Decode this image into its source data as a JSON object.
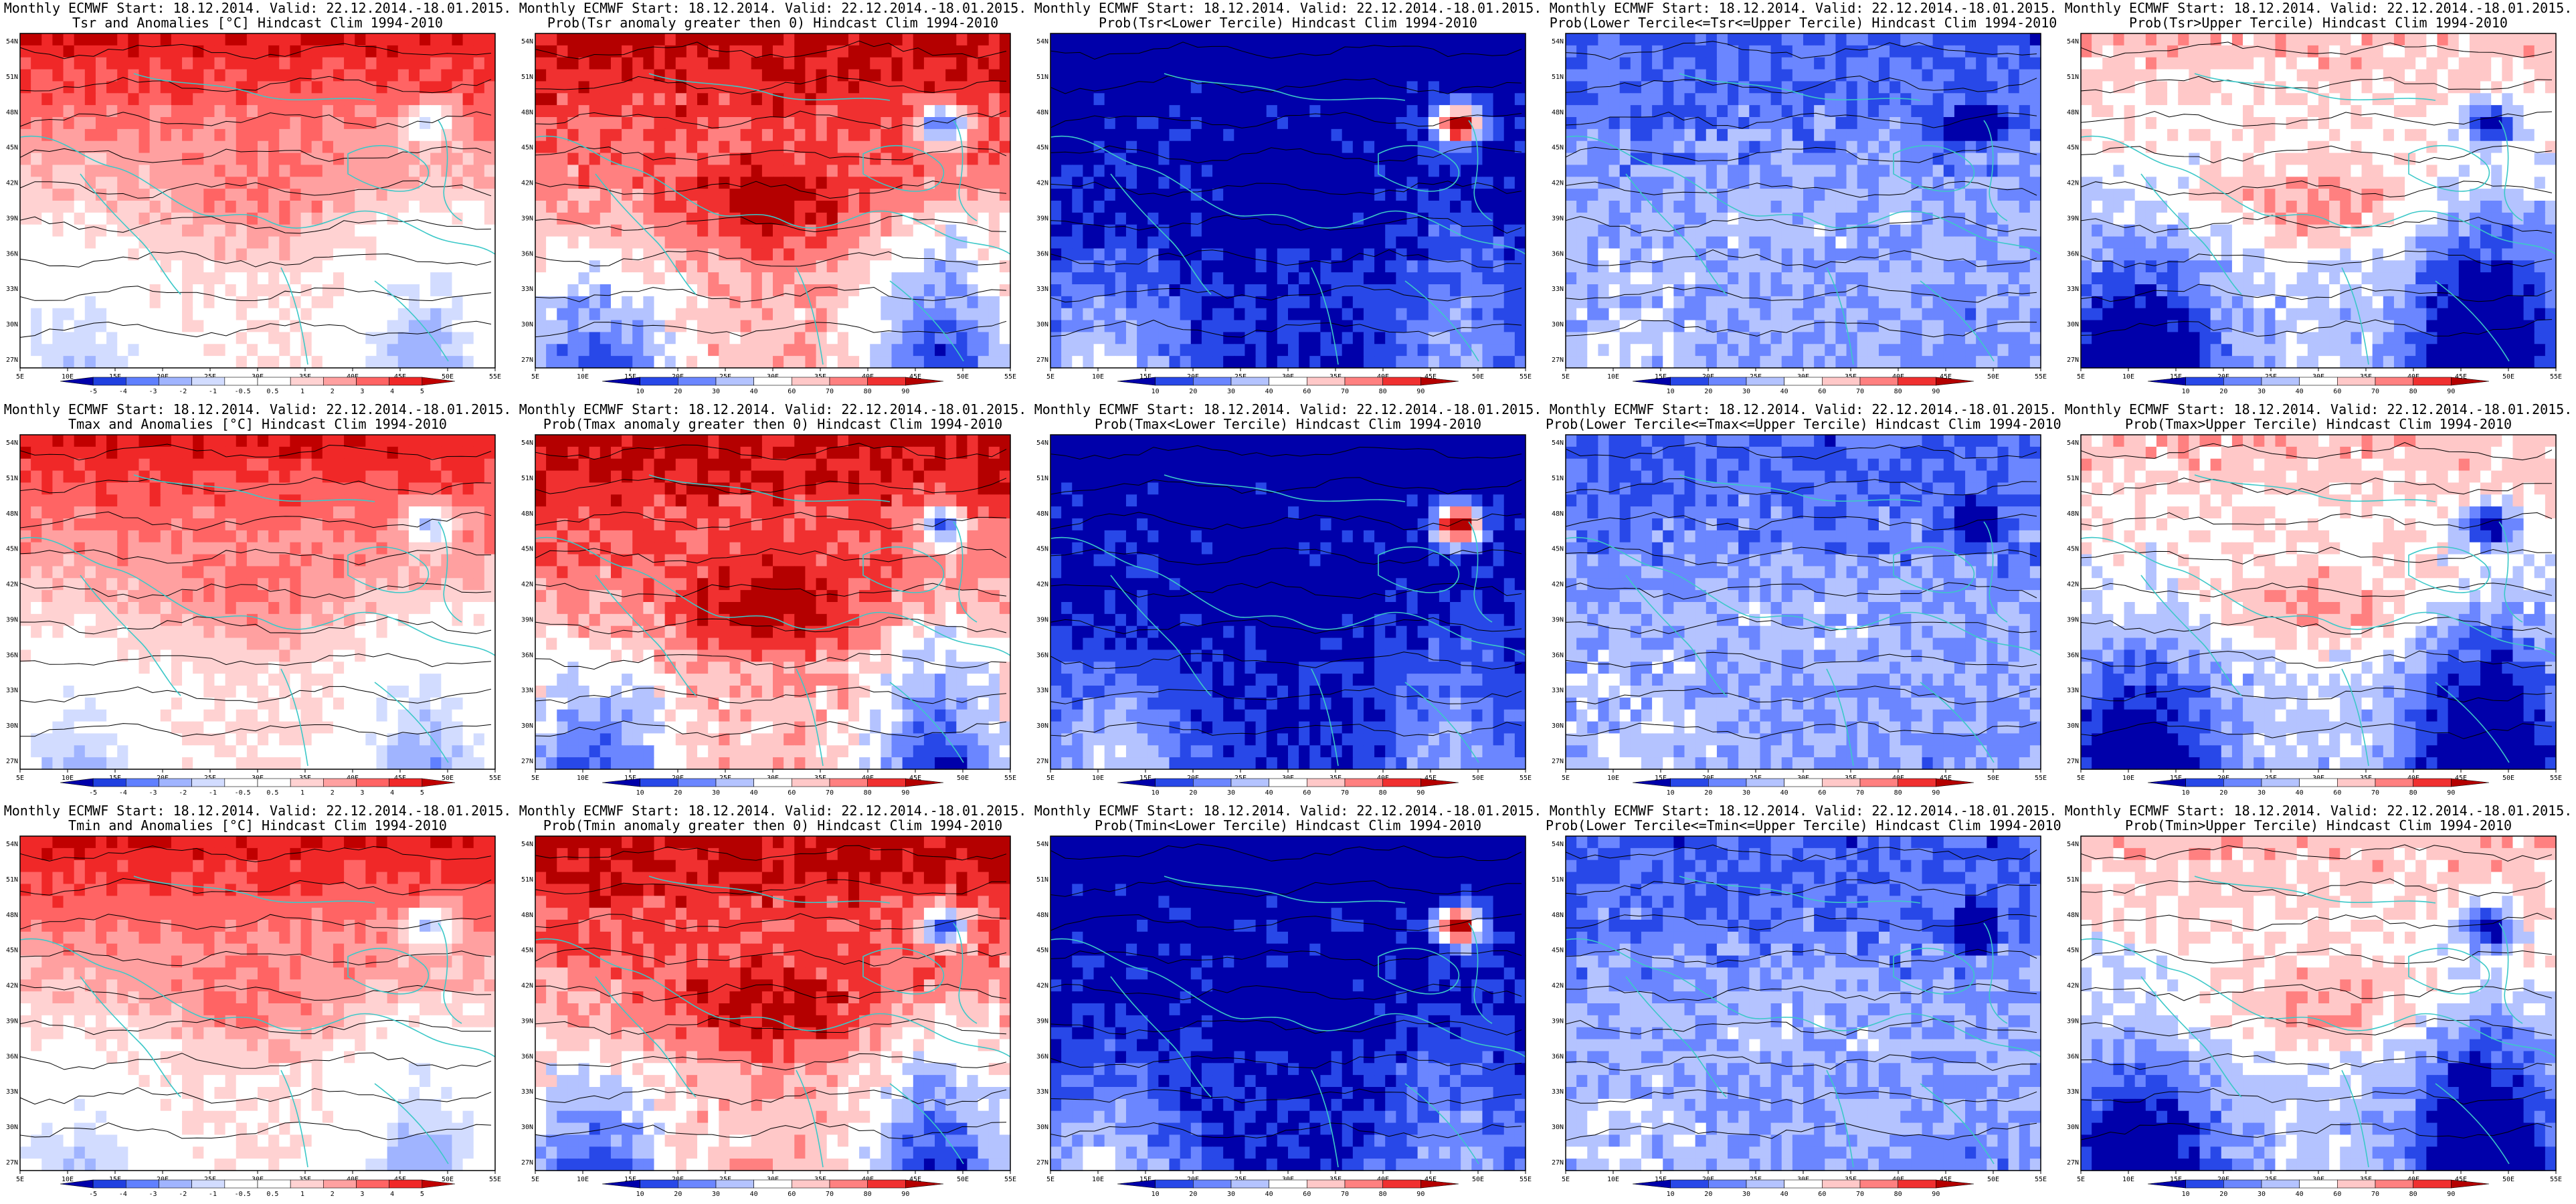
{
  "header_line": "Monthly ECMWF Start: 18.12.2014. Valid: 22.12.2014.-18.01.2015.",
  "lon_labels": [
    "5E",
    "10E",
    "15E",
    "20E",
    "25E",
    "30E",
    "35E",
    "40E",
    "45E",
    "50E",
    "55E"
  ],
  "lat_labels": [
    "54N",
    "51N",
    "48N",
    "45N",
    "42N",
    "39N",
    "36N",
    "33N",
    "30N",
    "27N"
  ],
  "anomaly_scale": [
    "-5",
    "-4",
    "-3",
    "-2",
    "-1",
    "-0.5",
    "0.5",
    "1",
    "2",
    "3",
    "4",
    "5"
  ],
  "prob_scale": [
    "10",
    "20",
    "30",
    "40",
    "60",
    "70",
    "80",
    "90"
  ],
  "colors": {
    "deep_blue": "#0000c8",
    "blue": "#3c5af0",
    "light_blue": "#b4c3ff",
    "pale_red": "#ffc8c8",
    "red": "#ff3c3c",
    "deep_red": "#c80000",
    "coast": "#3cc8c8",
    "contour": "#000000"
  },
  "panels": [
    {
      "subtitle": "Tsr and Anomalies [°C] Hindcast Clim 1994-2010",
      "scale": "anomaly"
    },
    {
      "subtitle": "Prob(Tsr anomaly greater then 0) Hindcast Clim 1994-2010",
      "scale": "prob"
    },
    {
      "subtitle": "Prob(Tsr<Lower Tercile) Hindcast Clim 1994-2010",
      "scale": "prob"
    },
    {
      "subtitle": "Prob(Lower Tercile<=Tsr<=Upper Tercile) Hindcast Clim 1994-2010",
      "scale": "prob"
    },
    {
      "subtitle": "Prob(Tsr>Upper Tercile) Hindcast Clim 1994-2010",
      "scale": "prob"
    },
    {
      "subtitle": "Tmax and Anomalies [°C] Hindcast Clim 1994-2010",
      "scale": "anomaly"
    },
    {
      "subtitle": "Prob(Tmax anomaly greater then 0) Hindcast Clim 1994-2010",
      "scale": "prob"
    },
    {
      "subtitle": "Prob(Tmax<Lower Tercile) Hindcast Clim 1994-2010",
      "scale": "prob"
    },
    {
      "subtitle": "Prob(Lower Tercile<=Tmax<=Upper Tercile) Hindcast Clim 1994-2010",
      "scale": "prob"
    },
    {
      "subtitle": "Prob(Tmax>Upper Tercile) Hindcast Clim 1994-2010",
      "scale": "prob"
    },
    {
      "subtitle": "Tmin and Anomalies [°C] Hindcast Clim 1994-2010",
      "scale": "anomaly"
    },
    {
      "subtitle": "Prob(Tmin anomaly greater then 0) Hindcast Clim 1994-2010",
      "scale": "prob"
    },
    {
      "subtitle": "Prob(Tmin<Lower Tercile) Hindcast Clim 1994-2010",
      "scale": "prob"
    },
    {
      "subtitle": "Prob(Lower Tercile<=Tmin<=Upper Tercile) Hindcast Clim 1994-2010",
      "scale": "prob"
    },
    {
      "subtitle": "Prob(Tmin>Upper Tercile) Hindcast Clim 1994-2010",
      "scale": "prob"
    }
  ]
}
